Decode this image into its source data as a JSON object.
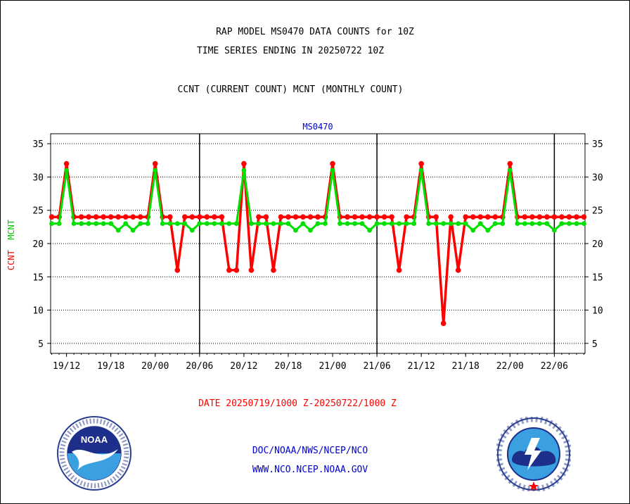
{
  "header": {
    "title_line1": "RAP MODEL MS0470 DATA COUNTS for 10Z",
    "title_line2": "TIME SERIES ENDING IN 20250722 10Z",
    "subtitle": "CCNT (CURRENT COUNT) MCNT (MONTHLY COUNT)"
  },
  "footer": {
    "date_range": "DATE 20250719/1000 Z-20250722/1000 Z",
    "credit_line1": "DOC/NOAA/NWS/NCEP/NCO",
    "credit_line2": "WWW.NCO.NCEP.NOAA.GOV"
  },
  "logos": {
    "left": {
      "icon": "noaa-logo-icon",
      "text": "NOAA"
    },
    "right": {
      "icon": "nws-logo-icon"
    }
  },
  "colors": {
    "ccnt": "#ff0000",
    "mcnt": "#00e000",
    "station": "#0000cc"
  },
  "chart_data": {
    "type": "line",
    "station_label": "MS0470",
    "ylabel_ccnt": "CCNT",
    "ylabel_mcnt": "MCNT",
    "ylim": [
      3.5,
      36.5
    ],
    "yticks": [
      5,
      10,
      15,
      20,
      25,
      30,
      35
    ],
    "x_range_hours": [
      -0.15,
      72.15
    ],
    "x_tick_labels": [
      "19/12",
      "19/18",
      "20/00",
      "20/06",
      "20/12",
      "20/18",
      "21/00",
      "21/06",
      "21/12",
      "21/18",
      "22/00",
      "22/06"
    ],
    "x_tick_hours": [
      2,
      8,
      14,
      20,
      26,
      32,
      38,
      44,
      50,
      56,
      62,
      68
    ],
    "day_boundary_hours": [
      20,
      44,
      68
    ],
    "x_start": "2025-07-19 10Z",
    "x_step": "1 hour",
    "grid": "dotted horizontal",
    "series": [
      {
        "name": "CCNT",
        "values": [
          24,
          24,
          32,
          24,
          24,
          24,
          24,
          24,
          24,
          24,
          24,
          24,
          24,
          24,
          32,
          24,
          24,
          16,
          24,
          24,
          24,
          24,
          24,
          24,
          16,
          16,
          32,
          16,
          24,
          24,
          16,
          24,
          24,
          24,
          24,
          24,
          24,
          24,
          32,
          24,
          24,
          24,
          24,
          24,
          24,
          24,
          24,
          16,
          24,
          24,
          32,
          24,
          24,
          8,
          24,
          16,
          24,
          24,
          24,
          24,
          24,
          24,
          32,
          24,
          24,
          24,
          24,
          24,
          24,
          24,
          24,
          24,
          24
        ]
      },
      {
        "name": "MCNT",
        "values": [
          23,
          23,
          31,
          23,
          23,
          23,
          23,
          23,
          23,
          22,
          23,
          22,
          23,
          23,
          31,
          23,
          23,
          23,
          23,
          22,
          23,
          23,
          23,
          23,
          23,
          23,
          31,
          23,
          23,
          23,
          23,
          23,
          23,
          22,
          23,
          22,
          23,
          23,
          31,
          23,
          23,
          23,
          23,
          22,
          23,
          23,
          23,
          23,
          23,
          23,
          31,
          23,
          23,
          23,
          23,
          23,
          23,
          22,
          23,
          22,
          23,
          23,
          31,
          23,
          23,
          23,
          23,
          23,
          22,
          23,
          23,
          23,
          23
        ]
      }
    ]
  }
}
